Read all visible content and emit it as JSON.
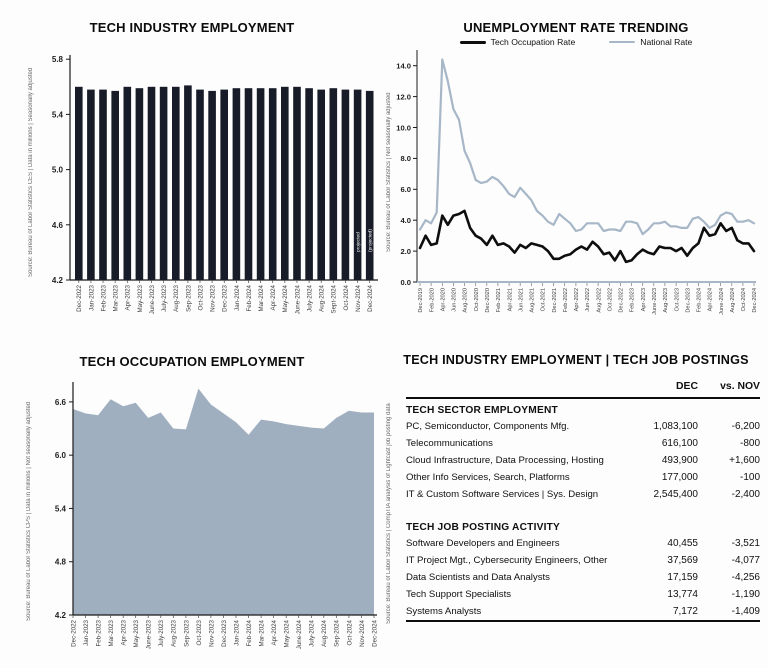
{
  "panels": {
    "industry_employment": {
      "title": "TECH INDUSTRY EMPLOYMENT",
      "source": "Source: Bureau of Labor Statistics CES | Data in millions | Seasonally adjusted"
    },
    "unemployment": {
      "title": "UNEMPLOYMENT RATE TRENDING",
      "source": "Source: Bureau of Labor Statistics | Not seasonally adjusted"
    },
    "occupation_employment": {
      "title": "TECH OCCUPATION EMPLOYMENT",
      "source": "Source: Bureau of Labor Statistics CPS | Data in millions | Not seasonally adjusted"
    },
    "table_panel": {
      "title": "TECH INDUSTRY EMPLOYMENT | TECH JOB POSTINGS",
      "source": "Source: Bureau of Labor Statistics | CompTIA analysis of Lightcast job posting data",
      "columns": [
        "DEC",
        "vs. NOV"
      ],
      "sections": [
        {
          "header": "TECH SECTOR EMPLOYMENT",
          "rows": [
            {
              "label": "PC, Semiconductor, Components Mfg.",
              "dec": "1,083,100",
              "vs_nov": "-6,200"
            },
            {
              "label": "Telecommunications",
              "dec": "616,100",
              "vs_nov": "-800"
            },
            {
              "label": "Cloud Infrastructure, Data Processing, Hosting",
              "dec": "493,900",
              "vs_nov": "+1,600"
            },
            {
              "label": "Other Info Services, Search, Platforms",
              "dec": "177,000",
              "vs_nov": "-100"
            },
            {
              "label": "IT & Custom Software Services | Sys. Design",
              "dec": "2,545,400",
              "vs_nov": "-2,400"
            }
          ]
        },
        {
          "header": "TECH JOB POSTING ACTIVITY",
          "rows": [
            {
              "label": "Software Developers and Engineers",
              "dec": "40,455",
              "vs_nov": "-3,521"
            },
            {
              "label": "IT Project Mgt., Cybersecurity Engineers, Other",
              "dec": "37,569",
              "vs_nov": "-4,077"
            },
            {
              "label": "Data Scientists and Data Analysts",
              "dec": "17,159",
              "vs_nov": "-4,256"
            },
            {
              "label": "Tech Support Specialists",
              "dec": "13,774",
              "vs_nov": "-1,190"
            },
            {
              "label": "Systems Analysts",
              "dec": "7,172",
              "vs_nov": "-1,409"
            }
          ]
        }
      ]
    }
  },
  "chart_data": [
    {
      "id": "industry-bars",
      "type": "bar",
      "title": "TECH INDUSTRY EMPLOYMENT",
      "categories": [
        "Dec-2022",
        "Jan-2023",
        "Feb-2023",
        "Mar-2023",
        "Apr-2023",
        "May-2023",
        "June-2023",
        "July-2023",
        "Aug-2023",
        "Sep-2023",
        "Oct-2023",
        "Nov-2023",
        "Dec-2023",
        "Jan-2024",
        "Feb-2024",
        "Mar-2024",
        "Apr-2024",
        "May-2024",
        "June-2024",
        "July-2024",
        "Aug-2024",
        "Sept-2024",
        "Oct-2024",
        "Nov-2024",
        "Dec-2024"
      ],
      "values": [
        5.6,
        5.58,
        5.58,
        5.57,
        5.6,
        5.59,
        5.6,
        5.6,
        5.6,
        5.61,
        5.58,
        5.57,
        5.58,
        5.59,
        5.59,
        5.59,
        5.59,
        5.6,
        5.6,
        5.59,
        5.58,
        5.59,
        5.58,
        5.58,
        5.57
      ],
      "xlabel": "",
      "ylabel": "",
      "ylim": [
        4.2,
        5.8
      ],
      "yticks": [
        5.8,
        5.4,
        5.0,
        4.6,
        4.2
      ],
      "grid": false,
      "bar_color": "#171c28",
      "projected_note_bars": [
        "projected",
        "(projected)"
      ]
    },
    {
      "id": "unemployment-lines",
      "type": "line",
      "title": "UNEMPLOYMENT RATE TRENDING",
      "x_tick_labels": [
        "Dec-2019",
        "Feb-2020",
        "Apr-2020",
        "Jun-2020",
        "Aug-2020",
        "Oct-2020",
        "Dec-2020",
        "Feb-2021",
        "Apr-2021",
        "Jun-2021",
        "Aug-2021",
        "Oct-2021",
        "Dec-2021",
        "Feb-2022",
        "Apr-2022",
        "Jun-2022",
        "Aug-2022",
        "Oct-2022",
        "Dec-2022",
        "Feb-2023",
        "Apr-2023",
        "June-2023",
        "Aug-2023",
        "Oct-2023",
        "Dec-2023",
        "Feb-2024",
        "Apr-2024",
        "June-2024",
        "Aug-2024",
        "Oct-2024",
        "Dec-2024"
      ],
      "months_per_tick": 2,
      "ylim": [
        0,
        14.4
      ],
      "yticks": [
        14.0,
        12.0,
        10.0,
        8.0,
        6.0,
        4.0,
        2.0,
        0.0
      ],
      "grid": false,
      "legend_position": "top",
      "series": [
        {
          "name": "Tech Occupation Rate",
          "color": "#0e0e0e",
          "values": [
            2.2,
            3.0,
            2.4,
            2.5,
            4.3,
            3.7,
            4.3,
            4.4,
            4.6,
            3.5,
            3.0,
            2.8,
            2.4,
            3.0,
            2.4,
            2.5,
            2.3,
            1.9,
            2.4,
            2.2,
            2.5,
            2.4,
            2.3,
            2.0,
            1.5,
            1.5,
            1.7,
            1.8,
            2.1,
            2.3,
            2.1,
            2.6,
            2.3,
            1.8,
            1.9,
            1.4,
            2.0,
            1.3,
            1.4,
            1.8,
            2.1,
            1.9,
            1.8,
            2.3,
            2.2,
            2.2,
            2.0,
            2.2,
            1.7,
            2.2,
            2.5,
            3.5,
            3.0,
            3.1,
            3.8,
            3.3,
            3.5,
            2.7,
            2.5,
            2.5,
            2.0
          ]
        },
        {
          "name": "National Rate",
          "color": "#a7b7c7",
          "values": [
            3.4,
            4.0,
            3.8,
            4.5,
            14.4,
            13.0,
            11.2,
            10.5,
            8.5,
            7.7,
            6.6,
            6.4,
            6.5,
            6.8,
            6.6,
            6.2,
            5.7,
            5.5,
            6.1,
            5.7,
            5.3,
            4.6,
            4.3,
            3.9,
            3.7,
            4.4,
            4.1,
            3.8,
            3.3,
            3.4,
            3.8,
            3.8,
            3.8,
            3.3,
            3.4,
            3.4,
            3.3,
            3.9,
            3.9,
            3.8,
            3.1,
            3.4,
            3.8,
            3.8,
            3.9,
            3.6,
            3.6,
            3.5,
            3.5,
            4.1,
            4.2,
            3.9,
            3.5,
            3.7,
            4.3,
            4.5,
            4.4,
            3.9,
            3.9,
            4.0,
            3.8
          ]
        }
      ]
    },
    {
      "id": "occupation-area",
      "type": "area",
      "title": "TECH OCCUPATION EMPLOYMENT",
      "categories": [
        "Dec-2022",
        "Jan-2023",
        "Feb-2023",
        "Mar-2023",
        "Apr-2023",
        "May-2023",
        "June-2023",
        "July-2023",
        "Aug-2023",
        "Sep-2023",
        "Oct-2023",
        "Nov-2023",
        "Dec-2023",
        "Jan-2024",
        "Feb-2024",
        "Mar-2024",
        "Apr-2024",
        "May-2024",
        "June-2024",
        "July-2024",
        "Aug-2024",
        "Sep-2024",
        "Oct-2024",
        "Nov-2024",
        "Dec-2024"
      ],
      "values": [
        6.52,
        6.47,
        6.45,
        6.63,
        6.55,
        6.59,
        6.42,
        6.48,
        6.3,
        6.29,
        6.75,
        6.57,
        6.47,
        6.37,
        6.23,
        6.4,
        6.38,
        6.35,
        6.33,
        6.31,
        6.3,
        6.42,
        6.5,
        6.48,
        6.48
      ],
      "xlabel": "",
      "ylabel": "",
      "ylim": [
        4.2,
        6.9
      ],
      "yticks": [
        6.6,
        6.0,
        5.4,
        4.8,
        4.2
      ],
      "grid": false,
      "fill_color": "#9fafc0"
    },
    {
      "id": "employment-postings-table",
      "type": "table",
      "title": "TECH INDUSTRY EMPLOYMENT | TECH JOB POSTINGS",
      "columns": [
        "",
        "DEC",
        "vs. NOV"
      ],
      "rows": [
        [
          "TECH SECTOR EMPLOYMENT",
          "",
          ""
        ],
        [
          "PC, Semiconductor, Components Mfg.",
          "1,083,100",
          "-6,200"
        ],
        [
          "Telecommunications",
          "616,100",
          "-800"
        ],
        [
          "Cloud Infrastructure, Data Processing, Hosting",
          "493,900",
          "+1,600"
        ],
        [
          "Other Info Services, Search, Platforms",
          "177,000",
          "-100"
        ],
        [
          "IT & Custom Software Services | Sys. Design",
          "2,545,400",
          "-2,400"
        ],
        [
          "TECH JOB POSTING ACTIVITY",
          "",
          ""
        ],
        [
          "Software Developers and Engineers",
          "40,455",
          "-3,521"
        ],
        [
          "IT Project Mgt., Cybersecurity Engineers, Other",
          "37,569",
          "-4,077"
        ],
        [
          "Data Scientists and Data Analysts",
          "17,159",
          "-4,256"
        ],
        [
          "Tech Support Specialists",
          "13,774",
          "-1,190"
        ],
        [
          "Systems Analysts",
          "7,172",
          "-1,409"
        ]
      ]
    }
  ]
}
